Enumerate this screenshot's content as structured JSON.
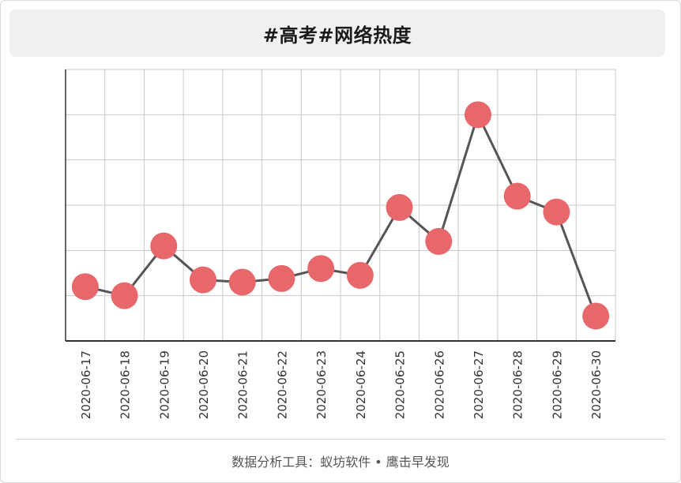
{
  "title": "#高考#网络热度",
  "footer": "数据分析工具：蚁坊软件 • 鹰击早发现",
  "colors": {
    "line": "#555555",
    "marker": "#e8676b",
    "grid": "#c8c8c8",
    "axis": "#333333"
  },
  "chart_data": {
    "type": "line",
    "title": "#高考#网络热度",
    "xlabel": "",
    "ylabel": "",
    "grid": true,
    "y_tick_labels_visible": false,
    "ylim": [
      0,
      6
    ],
    "categories": [
      "2020-06-17",
      "2020-06-18",
      "2020-06-19",
      "2020-06-20",
      "2020-06-21",
      "2020-06-22",
      "2020-06-23",
      "2020-06-24",
      "2020-06-25",
      "2020-06-26",
      "2020-06-27",
      "2020-06-28",
      "2020-06-29",
      "2020-06-30"
    ],
    "values": [
      1.2,
      1.0,
      2.1,
      1.35,
      1.3,
      1.38,
      1.6,
      1.45,
      2.95,
      2.2,
      5.0,
      3.2,
      2.85,
      0.55
    ]
  }
}
